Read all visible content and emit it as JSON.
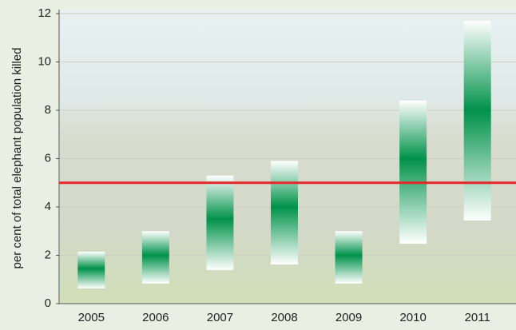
{
  "chart_data": {
    "type": "range-bar",
    "y_label": "per cent of total elephant population killed",
    "categories": [
      "2005",
      "2006",
      "2007",
      "2008",
      "2009",
      "2010",
      "2011"
    ],
    "series": [
      {
        "color": "#00924a",
        "low": [
          0.63,
          0.83,
          1.39,
          1.62,
          0.83,
          2.48,
          3.44
        ],
        "values": [
          1.45,
          2.0,
          3.5,
          4.0,
          2.0,
          6.0,
          8.0
        ],
        "high": [
          2.15,
          3.0,
          5.3,
          5.9,
          3.0,
          8.4,
          11.7
        ]
      }
    ],
    "reference_line": 5,
    "reference_color": "#e3262b",
    "ylim": [
      0,
      12
    ],
    "yticks": [
      0,
      2,
      4,
      6,
      8,
      10,
      12
    ],
    "grid": true
  }
}
